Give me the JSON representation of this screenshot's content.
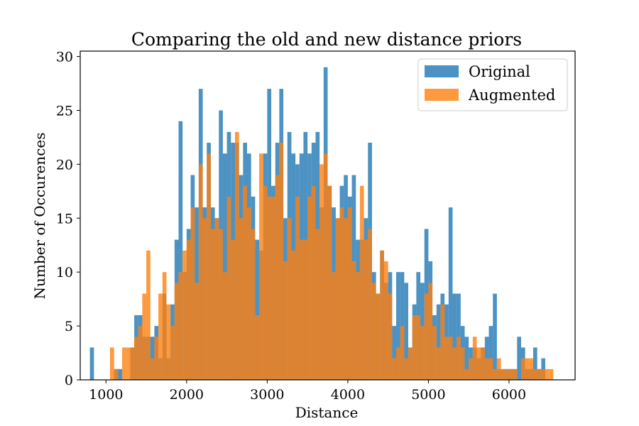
{
  "chart_data": {
    "type": "bar",
    "title": "Comparing the old and new distance priors",
    "xlabel": "Distance",
    "ylabel": "Number of Occurences",
    "xlim": [
      680,
      6820
    ],
    "ylim": [
      0,
      30.5
    ],
    "xticks": [
      1000,
      2000,
      3000,
      4000,
      5000,
      6000
    ],
    "yticks": [
      0,
      5,
      10,
      15,
      20,
      25,
      30
    ],
    "legend_position": "upper right",
    "bin_width": 50,
    "series": [
      {
        "name": "Original",
        "color": "#1f77b4",
        "opacity": 0.8,
        "bins": [
          [
            825,
            3
          ],
          [
            1125,
            1
          ],
          [
            1175,
            1
          ],
          [
            1325,
            3
          ],
          [
            1375,
            6
          ],
          [
            1425,
            6
          ],
          [
            1475,
            4
          ],
          [
            1525,
            4
          ],
          [
            1575,
            4
          ],
          [
            1625,
            5
          ],
          [
            1675,
            2
          ],
          [
            1725,
            8
          ],
          [
            1775,
            2
          ],
          [
            1825,
            7
          ],
          [
            1875,
            13
          ],
          [
            1925,
            24
          ],
          [
            1975,
            10
          ],
          [
            2025,
            14
          ],
          [
            2075,
            19
          ],
          [
            2125,
            16
          ],
          [
            2175,
            27
          ],
          [
            2225,
            16
          ],
          [
            2275,
            22
          ],
          [
            2325,
            16
          ],
          [
            2375,
            15
          ],
          [
            2425,
            25
          ],
          [
            2475,
            21
          ],
          [
            2525,
            23
          ],
          [
            2575,
            22
          ],
          [
            2625,
            22
          ],
          [
            2675,
            19
          ],
          [
            2725,
            22
          ],
          [
            2775,
            21
          ],
          [
            2825,
            17
          ],
          [
            2875,
            13
          ],
          [
            2925,
            12
          ],
          [
            2975,
            21
          ],
          [
            3025,
            27
          ],
          [
            3075,
            18
          ],
          [
            3125,
            22
          ],
          [
            3175,
            27
          ],
          [
            3225,
            15
          ],
          [
            3275,
            23
          ],
          [
            3325,
            21
          ],
          [
            3375,
            20
          ],
          [
            3425,
            21
          ],
          [
            3475,
            23
          ],
          [
            3525,
            21
          ],
          [
            3575,
            22
          ],
          [
            3625,
            23
          ],
          [
            3675,
            16
          ],
          [
            3725,
            29
          ],
          [
            3775,
            18
          ],
          [
            3825,
            16
          ],
          [
            3875,
            15
          ],
          [
            3925,
            18
          ],
          [
            3975,
            19
          ],
          [
            4025,
            17
          ],
          [
            4075,
            19
          ],
          [
            4125,
            13
          ],
          [
            4175,
            13
          ],
          [
            4225,
            15
          ],
          [
            4275,
            22
          ],
          [
            4325,
            10
          ],
          [
            4375,
            8
          ],
          [
            4425,
            12
          ],
          [
            4475,
            9
          ],
          [
            4525,
            10
          ],
          [
            4575,
            5
          ],
          [
            4625,
            10
          ],
          [
            4675,
            10
          ],
          [
            4725,
            9
          ],
          [
            4775,
            3
          ],
          [
            4825,
            7
          ],
          [
            4875,
            10
          ],
          [
            4925,
            9
          ],
          [
            4975,
            14
          ],
          [
            5025,
            11
          ],
          [
            5075,
            6
          ],
          [
            5125,
            7
          ],
          [
            5175,
            8
          ],
          [
            5225,
            7
          ],
          [
            5275,
            16
          ],
          [
            5325,
            8
          ],
          [
            5375,
            8
          ],
          [
            5425,
            5
          ],
          [
            5475,
            4
          ],
          [
            5525,
            3
          ],
          [
            5575,
            3
          ],
          [
            5625,
            2
          ],
          [
            5675,
            3
          ],
          [
            5725,
            4
          ],
          [
            5775,
            5
          ],
          [
            5825,
            8
          ],
          [
            5875,
            1
          ],
          [
            5925,
            1
          ],
          [
            5975,
            1
          ],
          [
            6025,
            1
          ],
          [
            6075,
            1
          ],
          [
            6125,
            4
          ],
          [
            6175,
            3
          ],
          [
            6225,
            1
          ],
          [
            6275,
            1
          ],
          [
            6325,
            3
          ],
          [
            6375,
            1
          ],
          [
            6425,
            2
          ]
        ]
      },
      {
        "name": "Augmented",
        "color": "#ff7f0e",
        "opacity": 0.8,
        "bins": [
          [
            1075,
            3
          ],
          [
            1125,
            1
          ],
          [
            1175,
            0
          ],
          [
            1225,
            3
          ],
          [
            1275,
            3
          ],
          [
            1325,
            3
          ],
          [
            1375,
            4
          ],
          [
            1425,
            5
          ],
          [
            1475,
            8
          ],
          [
            1525,
            12
          ],
          [
            1575,
            2
          ],
          [
            1625,
            4
          ],
          [
            1675,
            8
          ],
          [
            1725,
            10
          ],
          [
            1775,
            7
          ],
          [
            1825,
            5
          ],
          [
            1875,
            9
          ],
          [
            1925,
            10
          ],
          [
            1975,
            12
          ],
          [
            2025,
            13
          ],
          [
            2075,
            16
          ],
          [
            2125,
            9
          ],
          [
            2175,
            20
          ],
          [
            2225,
            15
          ],
          [
            2275,
            21
          ],
          [
            2325,
            14
          ],
          [
            2375,
            15
          ],
          [
            2425,
            14
          ],
          [
            2475,
            10
          ],
          [
            2525,
            17
          ],
          [
            2575,
            13
          ],
          [
            2625,
            23
          ],
          [
            2675,
            15
          ],
          [
            2725,
            18
          ],
          [
            2775,
            16
          ],
          [
            2825,
            14
          ],
          [
            2875,
            6
          ],
          [
            2925,
            21
          ],
          [
            2975,
            18
          ],
          [
            3025,
            17
          ],
          [
            3075,
            17
          ],
          [
            3125,
            19
          ],
          [
            3175,
            22
          ],
          [
            3225,
            11
          ],
          [
            3275,
            15
          ],
          [
            3325,
            12
          ],
          [
            3375,
            17
          ],
          [
            3425,
            13
          ],
          [
            3475,
            13
          ],
          [
            3525,
            17
          ],
          [
            3575,
            18
          ],
          [
            3625,
            14
          ],
          [
            3675,
            20
          ],
          [
            3725,
            21
          ],
          [
            3775,
            18
          ],
          [
            3825,
            10
          ],
          [
            3875,
            15
          ],
          [
            3925,
            16
          ],
          [
            3975,
            15
          ],
          [
            4025,
            16
          ],
          [
            4075,
            11
          ],
          [
            4125,
            10
          ],
          [
            4175,
            18
          ],
          [
            4225,
            13
          ],
          [
            4275,
            14
          ],
          [
            4325,
            9
          ],
          [
            4375,
            8
          ],
          [
            4425,
            12
          ],
          [
            4475,
            11
          ],
          [
            4525,
            8
          ],
          [
            4575,
            2
          ],
          [
            4625,
            3
          ],
          [
            4675,
            5
          ],
          [
            4725,
            2
          ],
          [
            4775,
            3
          ],
          [
            4825,
            6
          ],
          [
            4875,
            6
          ],
          [
            4925,
            5
          ],
          [
            4975,
            8
          ],
          [
            5025,
            9
          ],
          [
            5075,
            5
          ],
          [
            5125,
            3
          ],
          [
            5175,
            7
          ],
          [
            5225,
            4
          ],
          [
            5275,
            4
          ],
          [
            5325,
            3
          ],
          [
            5375,
            4
          ],
          [
            5425,
            3
          ],
          [
            5475,
            1
          ],
          [
            5525,
            2
          ],
          [
            5575,
            4
          ],
          [
            5625,
            3
          ],
          [
            5675,
            3
          ],
          [
            5725,
            2
          ],
          [
            5775,
            2
          ],
          [
            5825,
            1
          ],
          [
            5875,
            2
          ],
          [
            5925,
            1
          ],
          [
            5975,
            1
          ],
          [
            6025,
            1
          ],
          [
            6075,
            1
          ],
          [
            6125,
            0
          ],
          [
            6175,
            2
          ],
          [
            6225,
            2
          ],
          [
            6275,
            2
          ],
          [
            6325,
            1
          ],
          [
            6375,
            1
          ],
          [
            6425,
            1
          ],
          [
            6475,
            1
          ],
          [
            6525,
            1
          ]
        ]
      }
    ]
  }
}
